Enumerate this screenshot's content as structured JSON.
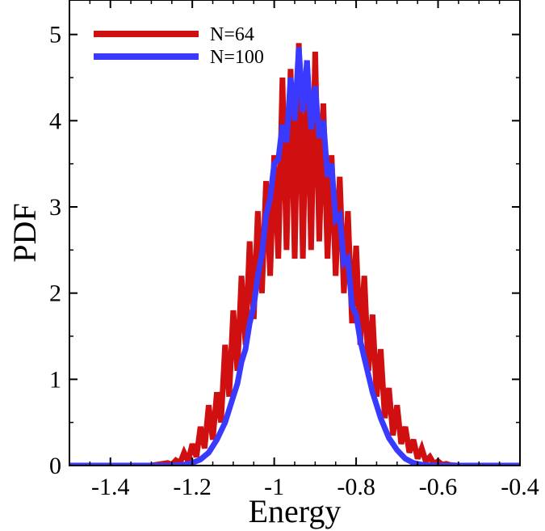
{
  "chart_data": {
    "type": "line",
    "title": "",
    "xlabel": "Energy",
    "ylabel": "PDF",
    "xlim": [
      -1.5,
      -0.4
    ],
    "ylim": [
      0,
      5.4
    ],
    "xticks": [
      -1.4,
      -1.2,
      -1.0,
      -0.8,
      -0.6,
      -0.4
    ],
    "xtick_labels": [
      "-1.4",
      "-1.2",
      "-1",
      "-0.8",
      "-0.6",
      "-0.4"
    ],
    "yticks": [
      0,
      1,
      2,
      3,
      4,
      5
    ],
    "ytick_labels": [
      "0",
      "1",
      "2",
      "3",
      "4",
      "5"
    ],
    "grid": false,
    "legend_position": "top-left",
    "series": [
      {
        "name": "N=64",
        "color": "#d01010",
        "x": [
          -1.5,
          -1.3,
          -1.26,
          -1.25,
          -1.24,
          -1.23,
          -1.22,
          -1.21,
          -1.2,
          -1.19,
          -1.18,
          -1.17,
          -1.16,
          -1.15,
          -1.14,
          -1.13,
          -1.12,
          -1.11,
          -1.1,
          -1.09,
          -1.08,
          -1.07,
          -1.06,
          -1.05,
          -1.04,
          -1.03,
          -1.02,
          -1.01,
          -1.0,
          -0.99,
          -0.98,
          -0.97,
          -0.96,
          -0.95,
          -0.94,
          -0.93,
          -0.92,
          -0.91,
          -0.9,
          -0.89,
          -0.88,
          -0.87,
          -0.86,
          -0.85,
          -0.84,
          -0.83,
          -0.82,
          -0.81,
          -0.8,
          -0.79,
          -0.78,
          -0.77,
          -0.76,
          -0.75,
          -0.74,
          -0.73,
          -0.72,
          -0.71,
          -0.7,
          -0.69,
          -0.68,
          -0.67,
          -0.66,
          -0.65,
          -0.64,
          -0.63,
          -0.62,
          -0.61,
          -0.6,
          -0.59,
          -0.58,
          -0.57,
          -0.55,
          -0.4
        ],
        "y": [
          0,
          0,
          0.03,
          0.01,
          0.06,
          0.03,
          0.15,
          0.05,
          0.25,
          0.1,
          0.45,
          0.2,
          0.7,
          0.3,
          0.85,
          0.5,
          1.4,
          0.8,
          1.8,
          1.1,
          2.2,
          1.4,
          2.6,
          1.7,
          2.95,
          2.0,
          3.3,
          2.2,
          3.6,
          2.4,
          4.5,
          2.5,
          4.6,
          2.4,
          4.9,
          2.4,
          4.7,
          2.5,
          4.8,
          2.6,
          4.2,
          2.4,
          3.6,
          2.2,
          3.35,
          2.0,
          2.95,
          1.65,
          2.55,
          1.4,
          2.2,
          1.1,
          1.75,
          0.8,
          1.35,
          0.55,
          0.9,
          0.35,
          0.7,
          0.25,
          0.45,
          0.15,
          0.3,
          0.08,
          0.2,
          0.05,
          0.1,
          0.02,
          0.05,
          0.01,
          0.02,
          0.005,
          0,
          0
        ]
      },
      {
        "name": "N=100",
        "color": "#3a3aff",
        "x": [
          -1.5,
          -1.25,
          -1.22,
          -1.2,
          -1.18,
          -1.16,
          -1.14,
          -1.12,
          -1.1,
          -1.09,
          -1.08,
          -1.07,
          -1.06,
          -1.05,
          -1.04,
          -1.03,
          -1.02,
          -1.01,
          -1.0,
          -0.99,
          -0.98,
          -0.97,
          -0.96,
          -0.95,
          -0.94,
          -0.93,
          -0.92,
          -0.91,
          -0.9,
          -0.89,
          -0.88,
          -0.87,
          -0.86,
          -0.85,
          -0.84,
          -0.83,
          -0.82,
          -0.81,
          -0.8,
          -0.79,
          -0.78,
          -0.76,
          -0.74,
          -0.72,
          -0.7,
          -0.68,
          -0.66,
          -0.64,
          -0.62,
          -0.6,
          -0.4
        ],
        "y": [
          0,
          0,
          0.01,
          0.03,
          0.07,
          0.15,
          0.3,
          0.5,
          0.8,
          0.95,
          1.2,
          1.35,
          1.65,
          1.85,
          2.2,
          2.45,
          2.9,
          3.1,
          3.5,
          3.55,
          3.95,
          3.75,
          4.5,
          4.0,
          4.85,
          4.1,
          4.7,
          3.9,
          4.4,
          3.8,
          4.0,
          3.35,
          3.5,
          2.85,
          2.9,
          2.35,
          2.4,
          1.85,
          1.75,
          1.45,
          1.25,
          0.85,
          0.55,
          0.32,
          0.18,
          0.08,
          0.03,
          0.01,
          0.003,
          0,
          0
        ]
      }
    ]
  }
}
